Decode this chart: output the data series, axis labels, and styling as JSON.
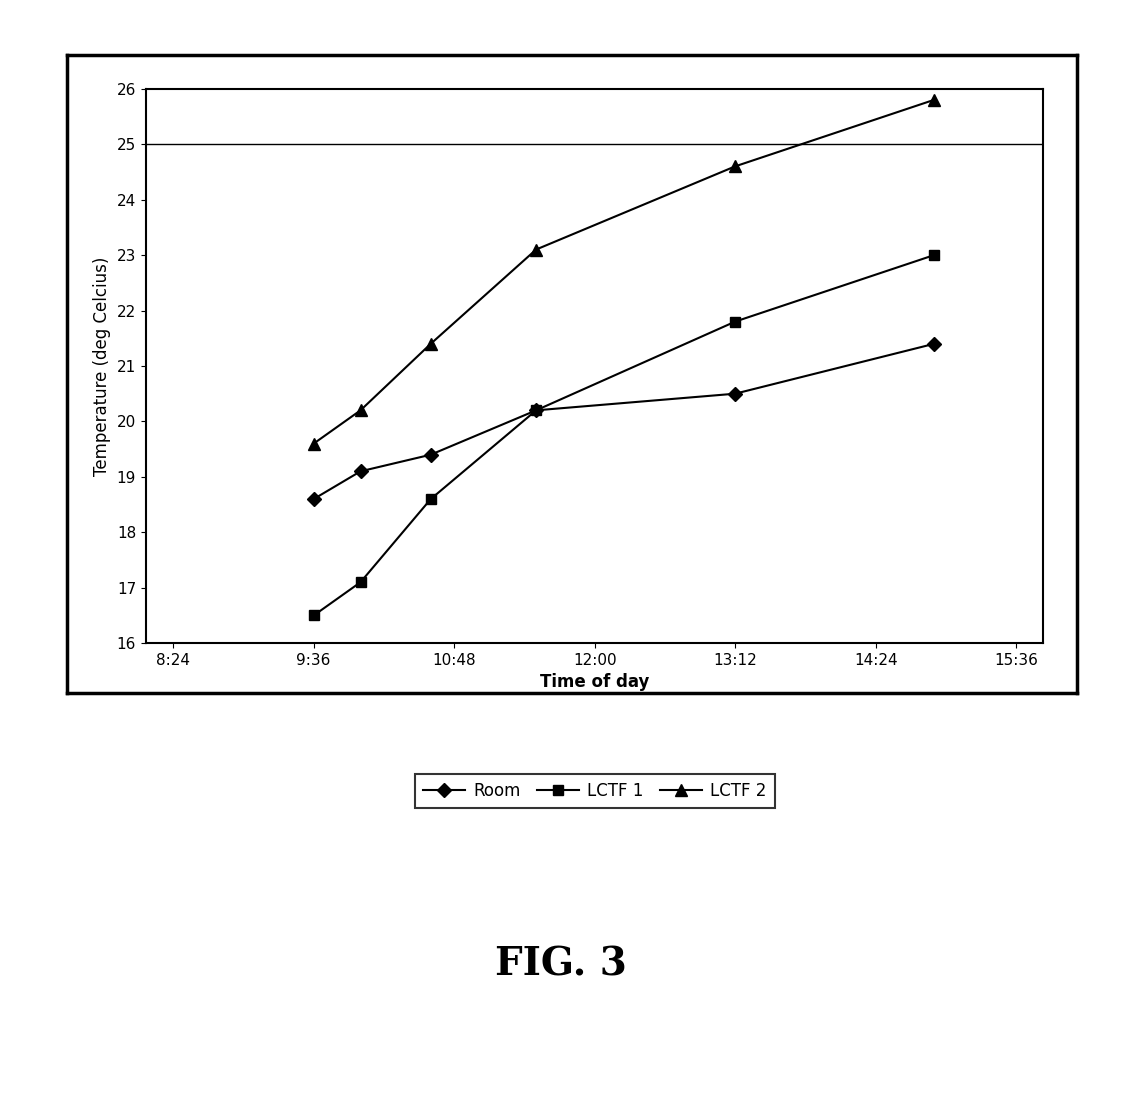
{
  "title": "FIG. 3",
  "xlabel": "Time of day",
  "ylabel": "Temperature (deg Celcius)",
  "ylim": [
    16,
    26
  ],
  "yticks": [
    16,
    17,
    18,
    19,
    20,
    21,
    22,
    23,
    24,
    25,
    26
  ],
  "background_color": "#ffffff",
  "hline_y": 25,
  "series": [
    {
      "label": "Room",
      "x_minutes": [
        576,
        600,
        636,
        690,
        792,
        894
      ],
      "y": [
        18.6,
        19.1,
        19.4,
        20.2,
        20.5,
        21.4
      ],
      "color": "#000000",
      "marker": "D",
      "marker_size": 7,
      "linewidth": 1.5
    },
    {
      "label": "LCTF 1",
      "x_minutes": [
        576,
        600,
        636,
        690,
        792,
        894
      ],
      "y": [
        16.5,
        17.1,
        18.6,
        20.2,
        21.8,
        23.0
      ],
      "color": "#000000",
      "marker": "s",
      "marker_size": 7,
      "linewidth": 1.5
    },
    {
      "label": "LCTF 2",
      "x_minutes": [
        576,
        600,
        636,
        690,
        792,
        894
      ],
      "y": [
        19.6,
        20.2,
        21.4,
        23.1,
        24.6,
        25.8
      ],
      "color": "#000000",
      "marker": "^",
      "marker_size": 8,
      "linewidth": 1.5
    }
  ],
  "x_tick_minutes": [
    504,
    576,
    648,
    720,
    792,
    864,
    936
  ],
  "x_tick_labels": [
    "8:24",
    "9:36",
    "10:48",
    "12:00",
    "13:12",
    "14:24",
    "15:36"
  ],
  "xlim_minutes": [
    490,
    950
  ],
  "fig_label": "FIG. 3",
  "fig_label_fontsize": 28,
  "legend_fontsize": 12,
  "axis_label_fontsize": 12,
  "tick_fontsize": 11
}
